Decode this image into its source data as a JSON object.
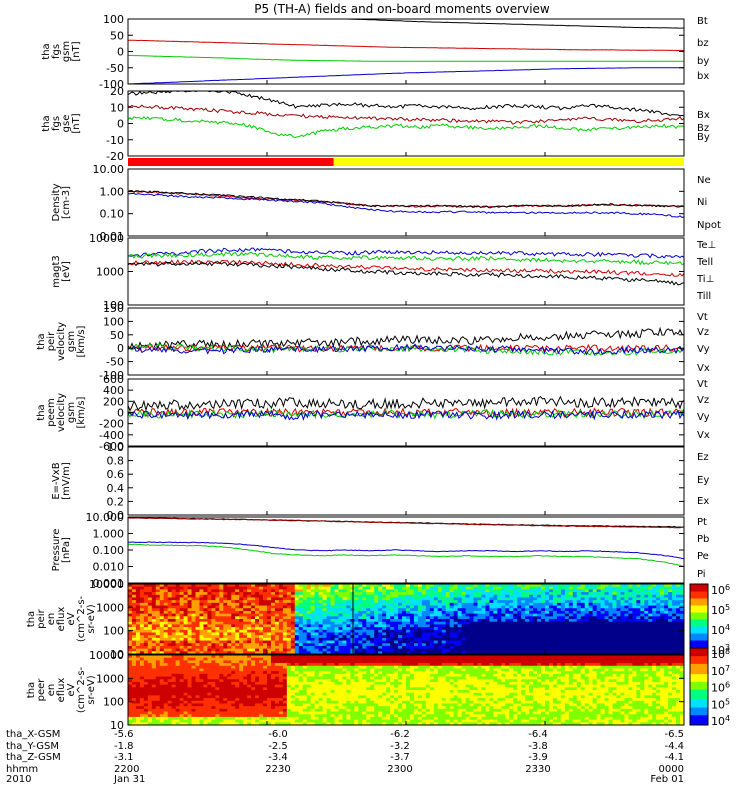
{
  "title": "P5 (TH-A) fields and on-board moments overview",
  "chart_data": [
    {
      "id": "fgs_gsm_nt",
      "type": "line",
      "ylabel": [
        "tha",
        "fgs",
        "gsm",
        "[nT]"
      ],
      "ylim": [
        -100,
        100
      ],
      "yticks": [
        "100",
        "50",
        "0",
        "-50",
        "-100"
      ],
      "series": [
        {
          "name": "Bt",
          "color": "#000000",
          "values": [
            110,
            110,
            109,
            108,
            107,
            106,
            105,
            104,
            102,
            100,
            98,
            95,
            92,
            90,
            88,
            86,
            84,
            82,
            80,
            78,
            76,
            74,
            73,
            72
          ]
        },
        {
          "name": "bz",
          "color": "#cc0000",
          "values": [
            35,
            33,
            31,
            29,
            27,
            25,
            23,
            21,
            19,
            17,
            15,
            13,
            12,
            11,
            10,
            9,
            8,
            7,
            6,
            5,
            5,
            4,
            4,
            3
          ]
        },
        {
          "name": "by",
          "color": "#00cc00",
          "values": [
            -12,
            -14,
            -16,
            -18,
            -20,
            -23,
            -25,
            -27,
            -28,
            -29,
            -30,
            -30,
            -30,
            -30,
            -30,
            -30,
            -30,
            -30,
            -30,
            -30,
            -30,
            -30,
            -30,
            -30
          ]
        },
        {
          "name": "bx",
          "color": "#0000cc",
          "values": [
            -100,
            -97,
            -94,
            -91,
            -88,
            -85,
            -82,
            -79,
            -76,
            -73,
            -70,
            -67,
            -65,
            -63,
            -61,
            -59,
            -57,
            -55,
            -53,
            -52,
            -51,
            -50,
            -50,
            -50
          ]
        }
      ]
    },
    {
      "id": "fgs_gse_nt",
      "type": "line",
      "ylabel": [
        "tha",
        "fgs",
        "gse",
        "[nT]"
      ],
      "ylim": [
        -25,
        20
      ],
      "yticks": [
        "20",
        "10",
        "0",
        "-10",
        "-20"
      ],
      "series": [
        {
          "name": "Bx",
          "color": "#000000",
          "values": [
            18,
            19,
            20,
            21,
            20,
            17,
            13,
            9,
            10,
            11,
            10,
            9,
            10,
            9,
            8,
            9,
            10,
            9,
            8,
            10,
            9,
            7,
            5,
            3
          ]
        },
        {
          "name": "Bz",
          "color": "#990000",
          "values": [
            10,
            9,
            8,
            7,
            6,
            5,
            4,
            3,
            2,
            2,
            1,
            1,
            0,
            0,
            -1,
            -1,
            -2,
            -1,
            0,
            1,
            0,
            -1,
            0,
            1
          ]
        },
        {
          "name": "By",
          "color": "#00cc00",
          "values": [
            1,
            1,
            0,
            -1,
            -2,
            -4,
            -9,
            -12,
            -8,
            -6,
            -5,
            -4,
            -5,
            -4,
            -5,
            -6,
            -5,
            -4,
            -6,
            -7,
            -6,
            -5,
            -4,
            -5
          ]
        }
      ]
    },
    {
      "id": "mode_bar",
      "type": "bar",
      "segments": [
        {
          "from": 0.0,
          "to": 0.37,
          "color": "#ff0000"
        },
        {
          "from": 0.37,
          "to": 1.0,
          "color": "#ffff00"
        }
      ]
    },
    {
      "id": "density",
      "type": "line",
      "ylabel": [
        "Density",
        "[cm-3]"
      ],
      "scale": "log",
      "ylim": [
        0.01,
        10
      ],
      "yticks": [
        "10.00",
        "1.00",
        "0.10",
        "0.01"
      ],
      "series": [
        {
          "name": "Ne",
          "color": "#cc0000",
          "values": [
            1.0,
            0.9,
            0.8,
            0.7,
            0.6,
            0.5,
            0.45,
            0.4,
            0.35,
            0.28,
            0.22,
            0.22,
            0.21,
            0.22,
            0.21,
            0.2,
            0.22,
            0.23,
            0.22,
            0.24,
            0.25,
            0.24,
            0.22,
            0.21
          ]
        },
        {
          "name": "Ni",
          "color": "#000000",
          "values": [
            1.0,
            0.95,
            0.85,
            0.75,
            0.65,
            0.55,
            0.48,
            0.42,
            0.36,
            0.28,
            0.22,
            0.22,
            0.22,
            0.22,
            0.21,
            0.2,
            0.22,
            0.23,
            0.22,
            0.24,
            0.26,
            0.24,
            0.22,
            0.21
          ]
        },
        {
          "name": "Npot",
          "color": "#0000cc",
          "values": [
            0.8,
            0.7,
            0.6,
            0.55,
            0.5,
            0.45,
            0.4,
            0.35,
            0.3,
            0.2,
            0.15,
            0.13,
            0.12,
            0.12,
            0.12,
            0.11,
            0.11,
            0.11,
            0.11,
            0.11,
            0.11,
            0.1,
            0.09,
            0.07
          ]
        }
      ]
    },
    {
      "id": "temperature",
      "type": "line",
      "ylabel": [
        "magt3",
        "[eV]"
      ],
      "scale": "log",
      "ylim": [
        100,
        10000
      ],
      "yticks": [
        "10000",
        "1000",
        "100"
      ],
      "series": [
        {
          "name": "Te⊥",
          "color": "#cc0000",
          "values": [
            1800,
            1850,
            1900,
            1950,
            1900,
            1850,
            1700,
            1600,
            1500,
            1400,
            1300,
            1250,
            1200,
            1150,
            1100,
            1100,
            1050,
            1050,
            1000,
            1000,
            950,
            900,
            850,
            800
          ]
        },
        {
          "name": "Tell",
          "color": "#000000",
          "values": [
            1600,
            1650,
            1700,
            1700,
            1650,
            1600,
            1500,
            1300,
            1200,
            1100,
            1000,
            950,
            900,
            850,
            800,
            800,
            750,
            750,
            700,
            650,
            600,
            550,
            500,
            400
          ]
        },
        {
          "name": "Ti⊥",
          "color": "#0000cc",
          "values": [
            3000,
            3200,
            3500,
            4000,
            4300,
            4500,
            4200,
            3800,
            3600,
            3500,
            3700,
            3800,
            3800,
            3700,
            3600,
            3700,
            3500,
            3400,
            3200,
            3300,
            3200,
            3000,
            2900,
            2900
          ]
        },
        {
          "name": "Till",
          "color": "#00cc00",
          "values": [
            2800,
            2900,
            3000,
            3200,
            3300,
            3300,
            3100,
            2800,
            2600,
            2500,
            2600,
            2500,
            2500,
            2500,
            2400,
            2500,
            2300,
            2200,
            2100,
            2100,
            2000,
            1900,
            1800,
            1800
          ]
        }
      ]
    },
    {
      "id": "peir_velocity",
      "type": "line",
      "ylabel": [
        "tha",
        "peir",
        "velocity",
        "gsm",
        "[km/s]"
      ],
      "ylim": [
        -100,
        150
      ],
      "yticks": [
        "150",
        "100",
        "50",
        "0",
        "-50",
        "-100"
      ],
      "series": [
        {
          "name": "Vt",
          "color": "#000000",
          "values": [
            10,
            12,
            14,
            15,
            14,
            16,
            18,
            20,
            22,
            25,
            28,
            30,
            32,
            30,
            28,
            35,
            40,
            42,
            45,
            50,
            52,
            55,
            60,
            55
          ]
        },
        {
          "name": "Vz",
          "color": "#cc0000",
          "values": [
            0,
            1,
            0,
            2,
            1,
            0,
            3,
            -2,
            0,
            1,
            -1,
            2,
            0,
            -3,
            1,
            0,
            2,
            -1,
            0,
            1,
            -2,
            0,
            1,
            0
          ]
        },
        {
          "name": "Vy",
          "color": "#00cc00",
          "values": [
            5,
            4,
            3,
            2,
            0,
            -2,
            -4,
            -5,
            -3,
            -2,
            -1,
            0,
            -2,
            -3,
            -5,
            -8,
            -10,
            -12,
            -14,
            -15,
            -16,
            -14,
            -12,
            -10
          ]
        },
        {
          "name": "Vx",
          "color": "#0000cc",
          "values": [
            -5,
            -4,
            -6,
            -8,
            -10,
            -6,
            -4,
            -3,
            -2,
            -1,
            0,
            2,
            3,
            2,
            1,
            -2,
            -5,
            -8,
            -10,
            -12,
            -10,
            -8,
            -6,
            -5
          ]
        }
      ]
    },
    {
      "id": "peem_velocity",
      "type": "line",
      "ylabel": [
        "tha",
        "peem",
        "velocity",
        "gsm",
        "[km/s]"
      ],
      "ylim": [
        -600,
        600
      ],
      "yticks": [
        "600",
        "400",
        "200",
        "0",
        "-200",
        "-400",
        "-600"
      ],
      "series": [
        {
          "name": "Vt",
          "color": "#000000",
          "values": [
            120,
            130,
            140,
            150,
            160,
            160,
            170,
            180,
            170,
            160,
            150,
            160,
            170,
            180,
            170,
            180,
            190,
            200,
            190,
            180,
            170,
            180,
            170,
            160
          ]
        },
        {
          "name": "Vz",
          "color": "#cc0000",
          "values": [
            0,
            5,
            -5,
            10,
            0,
            -10,
            5,
            0,
            -5,
            10,
            0,
            5,
            -5,
            0,
            10,
            -5,
            0,
            5,
            -10,
            0,
            5,
            0,
            -5,
            0
          ]
        },
        {
          "name": "Vy",
          "color": "#00cc00",
          "values": [
            -20,
            -30,
            -40,
            -30,
            -20,
            -40,
            -30,
            -20,
            -30,
            -40,
            -30,
            -20,
            -30,
            -40,
            -30,
            -20,
            -30,
            -40,
            -30,
            -20,
            -30,
            -40,
            -30,
            -20
          ]
        },
        {
          "name": "Vx",
          "color": "#0000cc",
          "values": [
            -30,
            -40,
            -50,
            -60,
            -40,
            -30,
            -50,
            -60,
            -40,
            -30,
            -50,
            -60,
            -40,
            -30,
            -50,
            -60,
            -40,
            -30,
            -50,
            -60,
            -40,
            -30,
            -50,
            -40
          ]
        }
      ]
    },
    {
      "id": "efield",
      "type": "line",
      "ylabel": [
        "E=-VxB",
        "[mV/m]"
      ],
      "ylim": [
        0,
        1
      ],
      "yticks": [
        "1.0",
        "0.8",
        "0.6",
        "0.4",
        "0.2",
        "0.0"
      ],
      "series": [
        {
          "name": "Ez",
          "color": "#cc0000",
          "values": []
        },
        {
          "name": "Ey",
          "color": "#00cc00",
          "values": []
        },
        {
          "name": "Ex",
          "color": "#0000cc",
          "values": []
        }
      ]
    },
    {
      "id": "pressure",
      "type": "line",
      "ylabel": [
        "Pressure",
        "[nPa]"
      ],
      "scale": "log",
      "ylim": [
        0.001,
        10
      ],
      "yticks": [
        "10.000",
        "1.000",
        "0.100",
        "0.010",
        "0.001"
      ],
      "series": [
        {
          "name": "Pt",
          "color": "#000000",
          "values": [
            9,
            8.6,
            8.2,
            7.8,
            7.4,
            7.0,
            6.6,
            6.2,
            5.8,
            5.4,
            5.0,
            4.7,
            4.4,
            4.1,
            3.8,
            3.6,
            3.4,
            3.2,
            3.0,
            2.9,
            2.8,
            2.7,
            2.6,
            2.5
          ]
        },
        {
          "name": "Pb",
          "color": "#990000",
          "values": [
            8.8,
            8.4,
            8.0,
            7.6,
            7.2,
            6.8,
            6.4,
            6.0,
            5.6,
            5.2,
            4.8,
            4.5,
            4.2,
            3.9,
            3.6,
            3.4,
            3.2,
            3.0,
            2.8,
            2.7,
            2.6,
            2.5,
            2.4,
            2.3
          ]
        },
        {
          "name": "Pe",
          "color": "#00cc00",
          "values": [
            0.22,
            0.2,
            0.19,
            0.18,
            0.15,
            0.1,
            0.06,
            0.05,
            0.045,
            0.05,
            0.045,
            0.05,
            0.045,
            0.04,
            0.045,
            0.04,
            0.04,
            0.045,
            0.04,
            0.04,
            0.035,
            0.03,
            0.02,
            0.01
          ]
        },
        {
          "name": "Pi",
          "color": "#0000cc",
          "values": [
            0.3,
            0.3,
            0.29,
            0.28,
            0.26,
            0.2,
            0.14,
            0.1,
            0.09,
            0.1,
            0.09,
            0.1,
            0.09,
            0.08,
            0.09,
            0.09,
            0.08,
            0.09,
            0.08,
            0.09,
            0.08,
            0.07,
            0.05,
            0.03
          ]
        }
      ]
    },
    {
      "id": "ion_spectrogram",
      "type": "heatmap",
      "ylabel": [
        "tha",
        "peir",
        "en",
        "eflux",
        "eV",
        "(cm^2-s-",
        "sr-eV)"
      ],
      "scale": "log",
      "ylim": [
        5,
        20000
      ],
      "yticks": [
        "10000",
        "1000",
        "100",
        "10"
      ],
      "colorbar_ticks": [
        "10^6",
        "10^5",
        "10^4",
        "10^3"
      ],
      "colorbar_range": [
        2.5,
        6.5
      ]
    },
    {
      "id": "electron_spectrogram",
      "type": "heatmap",
      "ylabel": [
        "tha",
        "peer",
        "en",
        "eflux",
        "eV",
        "(cm^2-s-",
        "sr-eV)"
      ],
      "scale": "log",
      "ylim": [
        5,
        20000
      ],
      "yticks": [
        "10000",
        "1000",
        "100",
        "10"
      ],
      "colorbar_ticks": [
        "10^8",
        "10^7",
        "10^6",
        "10^5",
        "10^4"
      ],
      "colorbar_range": [
        3.6,
        8.1
      ]
    }
  ],
  "ephemeris": {
    "labels": [
      "tha_X-GSM",
      "tha_Y-GSM",
      "tha_Z-GSM",
      "hhmm",
      "2010"
    ],
    "columns": [
      {
        "x": "-5.6",
        "y": "-1.8",
        "z": "-3.1",
        "time": "2200",
        "date": "Jan 31"
      },
      {
        "x": "-6.0",
        "y": "-2.5",
        "z": "-3.4",
        "time": "2230",
        "date": ""
      },
      {
        "x": "-6.2",
        "y": "-3.2",
        "z": "-3.7",
        "time": "2300",
        "date": ""
      },
      {
        "x": "-6.4",
        "y": "-3.8",
        "z": "-3.9",
        "time": "2330",
        "date": ""
      },
      {
        "x": "-6.5",
        "y": "-4.4",
        "z": "-4.1",
        "time": "0000",
        "date": "Feb 01"
      }
    ]
  }
}
